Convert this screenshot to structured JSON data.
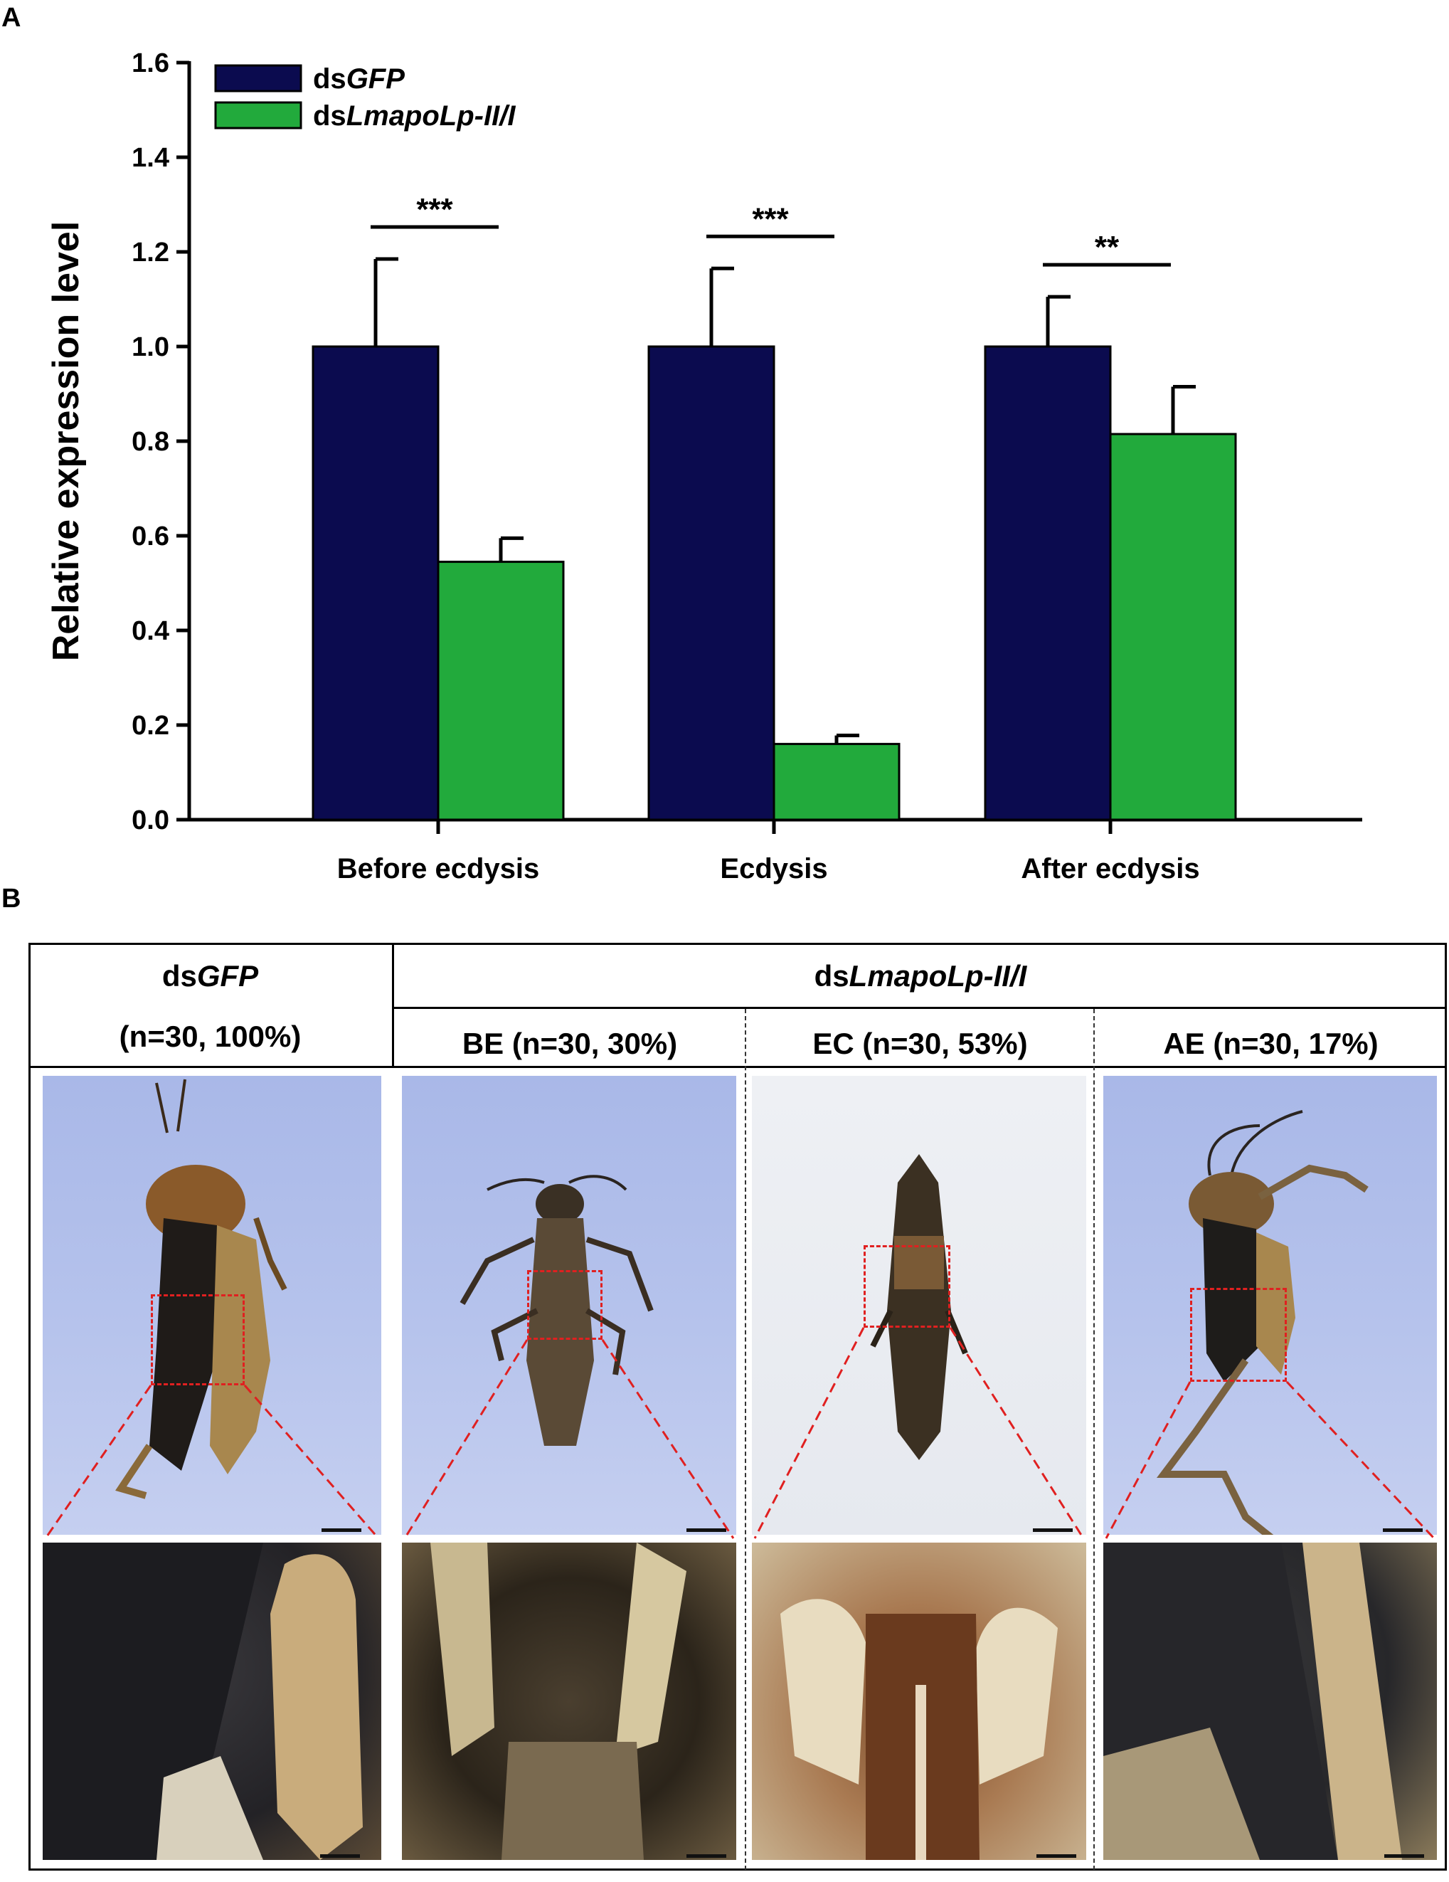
{
  "panel_a_label": "A",
  "panel_b_label": "B",
  "chart_data": {
    "type": "bar",
    "categories": [
      "Before ecdysis",
      "Ecdysis",
      "After ecdysis"
    ],
    "series": [
      {
        "name": "dsGFP",
        "color": "#0b0b4f",
        "values": [
          1.0,
          1.0,
          1.0
        ],
        "errors": [
          0.185,
          0.165,
          0.105
        ]
      },
      {
        "name": "dsLmapoLp-II/I",
        "color": "#22aa3c",
        "values": [
          0.545,
          0.16,
          0.815
        ],
        "errors": [
          0.05,
          0.018,
          0.1
        ]
      }
    ],
    "significance": [
      "***",
      "***",
      "**"
    ],
    "ylabel": "Relative expression level",
    "xlabel": "",
    "ylim": [
      0,
      1.6
    ],
    "yticks": [
      "0.0",
      "0.2",
      "0.4",
      "0.6",
      "0.8",
      "1.0",
      "1.2",
      "1.4",
      "1.6"
    ],
    "legend_position": "top-left",
    "legend": [
      {
        "prefix": "ds",
        "italic": "GFP"
      },
      {
        "prefix": "ds",
        "italic": "LmapoLp-II/I"
      }
    ],
    "grid": false
  },
  "panel_b": {
    "control_header": {
      "prefix": "ds",
      "italic": "GFP"
    },
    "control_stats": "(n=30, 100%)",
    "treatment_header": {
      "prefix": "ds",
      "italic": "LmapoLp-II/I"
    },
    "columns": [
      "BE (n=30, 30%)",
      "EC (n=30, 53%)",
      "AE (n=30, 17%)"
    ]
  }
}
